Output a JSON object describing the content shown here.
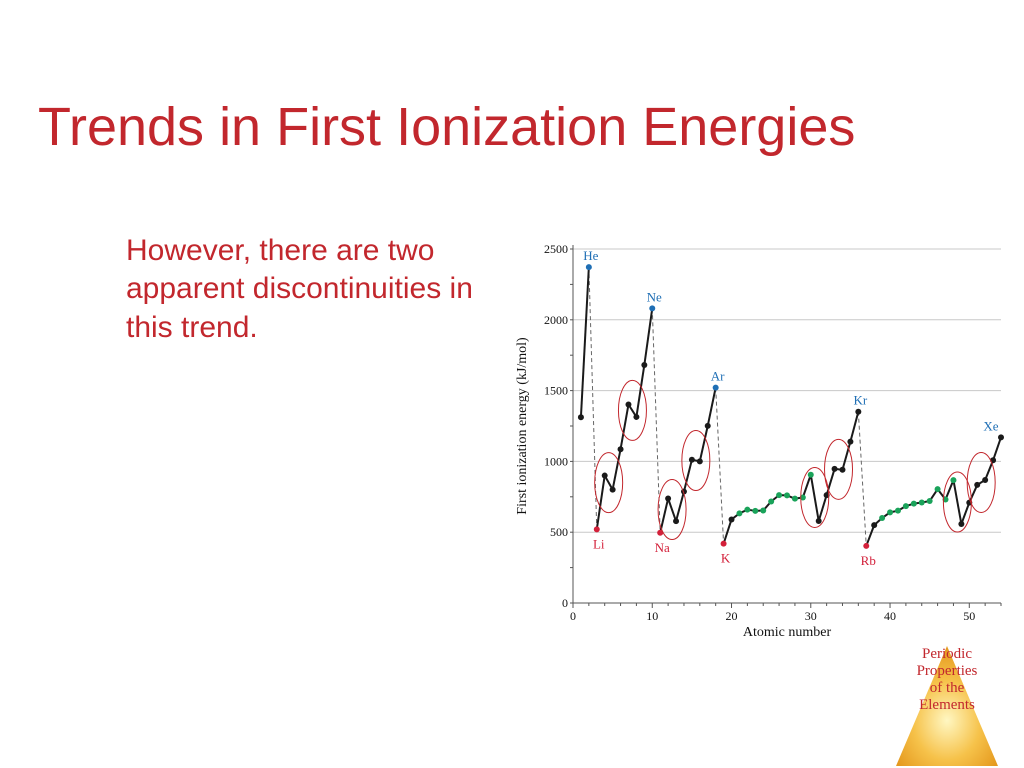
{
  "slide": {
    "title": "Trends in First Ionization Energies",
    "body": "However, there are two apparent discontinuities in this trend.",
    "badge_text": "Periodic\nProperties\nof the\nElements"
  },
  "colors": {
    "title": "#c2272d",
    "noble_gas": "#1f6fb5",
    "alkali_metal": "#d3203a",
    "transition_metal": "#1aa35a",
    "other": "#1a1a1a",
    "circle": "#c2272d",
    "badge": "#f2b33a"
  },
  "chart_data": {
    "type": "line",
    "xlabel": "Atomic number",
    "ylabel": "First ionization energy (kJ/mol)",
    "xlim": [
      0,
      54
    ],
    "ylim": [
      0,
      2500
    ],
    "x_ticks": [
      0,
      10,
      20,
      30,
      40,
      50
    ],
    "y_ticks": [
      0,
      500,
      1000,
      1500,
      2000,
      2500
    ],
    "grid": "horizontal",
    "series": [
      {
        "x": [
          1,
          2,
          3,
          4,
          5,
          6,
          7,
          8,
          9,
          10,
          11,
          12,
          13,
          14,
          15,
          16,
          17,
          18,
          19,
          20,
          21,
          22,
          23,
          24,
          25,
          26,
          27,
          28,
          29,
          30,
          31,
          32,
          33,
          34,
          35,
          36,
          37,
          38,
          39,
          40,
          41,
          42,
          43,
          44,
          45,
          46,
          47,
          48,
          49,
          50,
          51,
          52,
          53,
          54
        ],
        "y": [
          1312,
          2372,
          520,
          900,
          801,
          1086,
          1402,
          1314,
          1681,
          2081,
          496,
          738,
          578,
          787,
          1012,
          1000,
          1251,
          1521,
          419,
          590,
          633,
          659,
          651,
          653,
          717,
          762,
          760,
          737,
          745,
          906,
          579,
          762,
          947,
          941,
          1140,
          1351,
          403,
          550,
          600,
          640,
          652,
          684,
          702,
          710,
          720,
          804,
          731,
          868,
          558,
          709,
          834,
          869,
          1008,
          1170
        ],
        "categories": [
          "other",
          "noble_gas",
          "alkali_metal",
          "other",
          "other",
          "other",
          "other",
          "other",
          "other",
          "noble_gas",
          "alkali_metal",
          "other",
          "other",
          "other",
          "other",
          "other",
          "other",
          "noble_gas",
          "alkali_metal",
          "other",
          "transition_metal",
          "transition_metal",
          "transition_metal",
          "transition_metal",
          "transition_metal",
          "transition_metal",
          "transition_metal",
          "transition_metal",
          "transition_metal",
          "transition_metal",
          "other",
          "other",
          "other",
          "other",
          "other",
          "other",
          "alkali_metal",
          "other",
          "transition_metal",
          "transition_metal",
          "transition_metal",
          "transition_metal",
          "transition_metal",
          "transition_metal",
          "transition_metal",
          "transition_metal",
          "transition_metal",
          "transition_metal",
          "other",
          "other",
          "other",
          "other",
          "other",
          "other"
        ]
      }
    ],
    "element_labels": [
      {
        "z": 2,
        "label": "He",
        "group": "noble_gas"
      },
      {
        "z": 10,
        "label": "Ne",
        "group": "noble_gas"
      },
      {
        "z": 18,
        "label": "Ar",
        "group": "noble_gas"
      },
      {
        "z": 36,
        "label": "Kr",
        "group": "noble_gas"
      },
      {
        "z": 54,
        "label": "Xe",
        "group": "noble_gas"
      },
      {
        "z": 3,
        "label": "Li",
        "group": "alkali_metal"
      },
      {
        "z": 11,
        "label": "Na",
        "group": "alkali_metal"
      },
      {
        "z": 19,
        "label": "K",
        "group": "alkali_metal"
      },
      {
        "z": 37,
        "label": "Rb",
        "group": "alkali_metal"
      }
    ],
    "period_drops": [
      [
        2,
        3
      ],
      [
        10,
        11
      ],
      [
        18,
        19
      ],
      [
        36,
        37
      ]
    ],
    "annotations": [
      {
        "type": "circle",
        "x": 4.5,
        "y": 850
      },
      {
        "type": "circle",
        "x": 7.5,
        "y": 1360
      },
      {
        "type": "circle",
        "x": 12.5,
        "y": 660
      },
      {
        "type": "circle",
        "x": 15.5,
        "y": 1006
      },
      {
        "type": "circle",
        "x": 30.5,
        "y": 745
      },
      {
        "type": "circle",
        "x": 33.5,
        "y": 944
      },
      {
        "type": "circle",
        "x": 48.5,
        "y": 713
      },
      {
        "type": "circle",
        "x": 51.5,
        "y": 851
      }
    ]
  }
}
